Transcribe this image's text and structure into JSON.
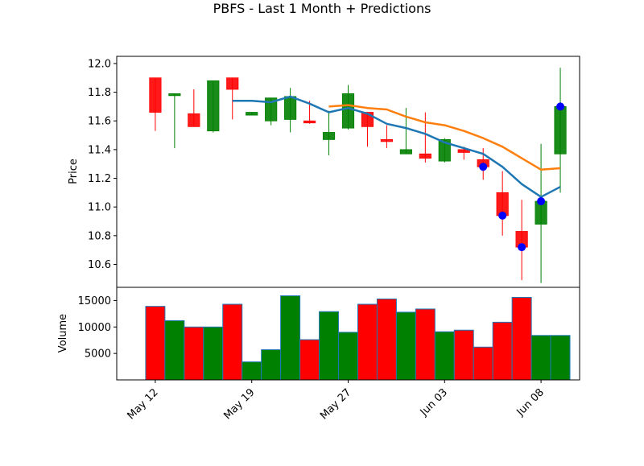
{
  "chart_data": {
    "title": "PBFS - Last 1 Month + Predictions",
    "type": "candlestick",
    "colors": {
      "up": "#008000",
      "down": "#ff0000",
      "ma_short": "#1f77b4",
      "ma_long": "#ff7f0e",
      "prediction": "#0000ff",
      "volume_edge": "#1f77b4"
    },
    "price_panel": {
      "ylabel": "Price",
      "ylim": [
        10.44,
        12.05
      ],
      "yticks": [
        10.6,
        10.8,
        11.0,
        11.2,
        11.4,
        11.6,
        11.8,
        12.0
      ],
      "ytick_labels": [
        "10.6",
        "10.8",
        "11.0",
        "11.2",
        "11.4",
        "11.6",
        "11.8",
        "12.0"
      ]
    },
    "volume_panel": {
      "ylabel": "Volume",
      "ylim": [
        0,
        17500
      ],
      "yticks": [
        5000,
        10000,
        15000
      ],
      "ytick_labels": [
        "5000",
        "10000",
        "15000"
      ]
    },
    "xlim": [
      -2.0,
      22.0
    ],
    "x_ticks": [
      0,
      5,
      10,
      15,
      20
    ],
    "x_tick_labels": [
      "May 12",
      "May 19",
      "May 27",
      "Jun 03",
      "Jun 08"
    ],
    "candles": [
      {
        "open": 11.9,
        "high": 11.9,
        "low": 11.53,
        "close": 11.66,
        "volume": 13900
      },
      {
        "open": 11.79,
        "high": 11.79,
        "low": 11.41,
        "close": 11.79,
        "volume": 11200
      },
      {
        "open": 11.65,
        "high": 11.82,
        "low": 11.56,
        "close": 11.56,
        "volume": 10000
      },
      {
        "open": 11.53,
        "high": 11.88,
        "low": 11.52,
        "close": 11.88,
        "volume": 10000
      },
      {
        "open": 11.9,
        "high": 11.9,
        "low": 11.61,
        "close": 11.82,
        "volume": 14300
      },
      {
        "open": 11.64,
        "high": 11.66,
        "low": 11.64,
        "close": 11.66,
        "volume": 3400
      },
      {
        "open": 11.6,
        "high": 11.76,
        "low": 11.57,
        "close": 11.76,
        "volume": 5700
      },
      {
        "open": 11.61,
        "high": 11.83,
        "low": 11.52,
        "close": 11.77,
        "volume": 15900
      },
      {
        "open": 11.6,
        "high": 11.74,
        "low": 11.58,
        "close": 11.59,
        "volume": 7600
      },
      {
        "open": 11.47,
        "high": 11.67,
        "low": 11.36,
        "close": 11.52,
        "volume": 12900
      },
      {
        "open": 11.55,
        "high": 11.85,
        "low": 11.54,
        "close": 11.79,
        "volume": 9000
      },
      {
        "open": 11.66,
        "high": 11.66,
        "low": 11.42,
        "close": 11.56,
        "volume": 14300
      },
      {
        "open": 11.47,
        "high": 11.57,
        "low": 11.41,
        "close": 11.46,
        "volume": 15300
      },
      {
        "open": 11.37,
        "high": 11.69,
        "low": 11.37,
        "close": 11.4,
        "volume": 12800
      },
      {
        "open": 11.37,
        "high": 11.66,
        "low": 11.31,
        "close": 11.34,
        "volume": 13400
      },
      {
        "open": 11.32,
        "high": 11.48,
        "low": 11.31,
        "close": 11.47,
        "volume": 9100
      },
      {
        "open": 11.4,
        "high": 11.42,
        "low": 11.33,
        "close": 11.38,
        "volume": 9400
      },
      {
        "open": 11.33,
        "high": 11.41,
        "low": 11.19,
        "close": 11.28,
        "volume": 6200
      },
      {
        "open": 11.1,
        "high": 11.25,
        "low": 10.8,
        "close": 10.94,
        "volume": 10900
      },
      {
        "open": 10.83,
        "high": 11.05,
        "low": 10.49,
        "close": 10.72,
        "volume": 15600
      },
      {
        "open": 10.88,
        "high": 11.44,
        "low": 10.47,
        "close": 11.04,
        "volume": 8400
      },
      {
        "open": 11.37,
        "high": 11.97,
        "low": 11.1,
        "close": 11.7,
        "volume": 8400
      }
    ],
    "ma_short": {
      "x": [
        4,
        5,
        6,
        7,
        8,
        9,
        10,
        11,
        12,
        13,
        14,
        15,
        16,
        17,
        18,
        19,
        20,
        21
      ],
      "y": [
        11.74,
        11.74,
        11.73,
        11.77,
        11.72,
        11.66,
        11.69,
        11.65,
        11.58,
        11.55,
        11.51,
        11.45,
        11.41,
        11.37,
        11.28,
        11.16,
        11.07,
        11.14
      ]
    },
    "ma_long": {
      "x": [
        9,
        10,
        11,
        12,
        13,
        14,
        15,
        16,
        17,
        18,
        19,
        20,
        21
      ],
      "y": [
        11.7,
        11.71,
        11.69,
        11.68,
        11.63,
        11.59,
        11.57,
        11.53,
        11.48,
        11.42,
        11.34,
        11.26,
        11.27
      ]
    },
    "predictions": {
      "x": [
        17,
        18,
        19,
        20,
        21
      ],
      "y": [
        11.28,
        10.94,
        10.72,
        11.04,
        11.7
      ]
    }
  }
}
